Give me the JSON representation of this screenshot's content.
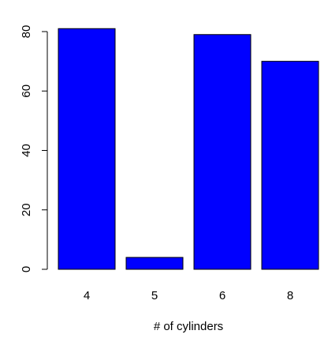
{
  "chart_data": {
    "type": "bar",
    "title": "",
    "xlabel": "# of cylinders",
    "ylabel": "",
    "categories": [
      "4",
      "5",
      "6",
      "8"
    ],
    "values": [
      81,
      4,
      79,
      70
    ],
    "ylim": [
      0,
      80
    ],
    "yticks": [
      0,
      20,
      40,
      60,
      80
    ],
    "bar_color": "#0000ff",
    "bar_border_color": "#000000",
    "grid": false,
    "legend": "none"
  }
}
